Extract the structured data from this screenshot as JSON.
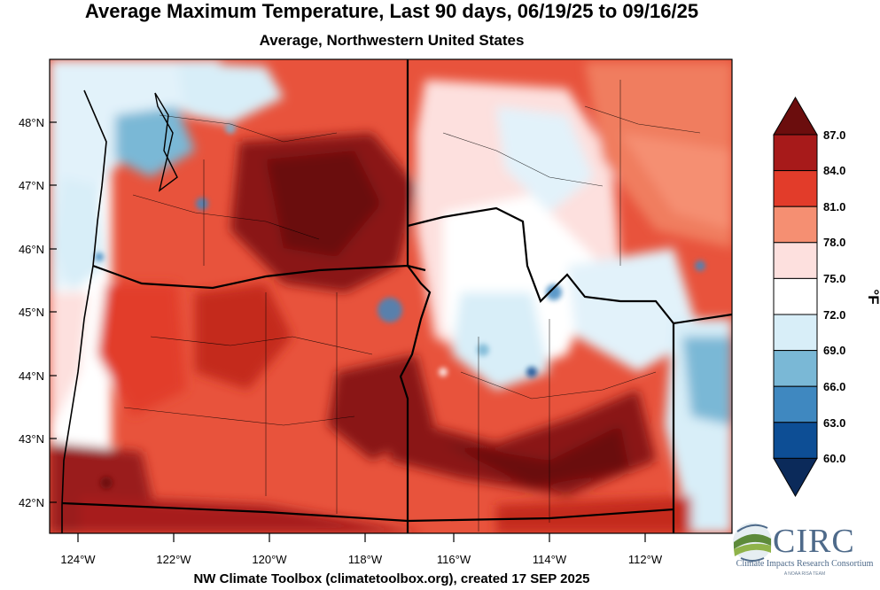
{
  "title": "Average Maximum Temperature, Last 90 days, 06/19/25 to 09/16/25",
  "subtitle": "Average, Northwestern United States",
  "footer": "NW Climate Toolbox (climatetoolbox.org), created 17 SEP 2025",
  "map": {
    "lat_labels": [
      "48°N",
      "47°N",
      "46°N",
      "45°N",
      "44°N",
      "43°N",
      "42°N"
    ],
    "lon_labels": [
      "124°W",
      "122°W",
      "120°W",
      "118°W",
      "116°W",
      "114°W",
      "112°W"
    ]
  },
  "colorbar": {
    "unit": "°F",
    "labels": [
      "87.0",
      "84.0",
      "81.0",
      "78.0",
      "75.0",
      "72.0",
      "69.0",
      "66.0",
      "63.0",
      "60.0"
    ],
    "colors": [
      "#6b0d0d",
      "#a71a1a",
      "#e23c2a",
      "#f58f72",
      "#fde0de",
      "#ffffff",
      "#d8eef8",
      "#7ab8d6",
      "#3f88c0",
      "#0d4e95",
      "#0b2a5a"
    ]
  },
  "logo": {
    "name": "CIRC",
    "full_name": "Climate Impacts Research Consortium",
    "tagline": "A NOAA RISA TEAM"
  }
}
